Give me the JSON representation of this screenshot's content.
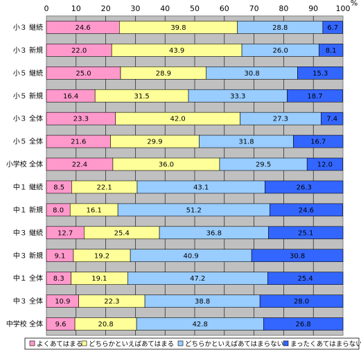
{
  "chart_data": {
    "type": "bar",
    "orientation": "horizontal",
    "stacked": true,
    "unit": "%",
    "xlim": [
      0,
      100
    ],
    "x_ticks": [
      0,
      10,
      20,
      30,
      40,
      50,
      60,
      70,
      80,
      90,
      100
    ],
    "grid": true,
    "legend_position": "bottom",
    "categories": [
      "小３ 継続",
      "小３ 新規",
      "小５ 継続",
      "小５ 新規",
      "小３ 全体",
      "小５ 全体",
      "小学校 全体",
      "中１ 継続",
      "中１ 新規",
      "中３ 継続",
      "中３ 新規",
      "中１ 全体",
      "中３ 全体",
      "中学校 全体"
    ],
    "series": [
      {
        "name": "よくあてはまる",
        "color": "#ff99cc",
        "values": [
          24.6,
          22.0,
          25.0,
          16.4,
          23.3,
          21.6,
          22.4,
          8.5,
          8.0,
          12.7,
          9.1,
          8.3,
          10.9,
          9.6
        ]
      },
      {
        "name": "どちらかといえばあてはまる",
        "color": "#ffff99",
        "values": [
          39.8,
          43.9,
          28.9,
          31.5,
          42.0,
          29.9,
          36.0,
          22.1,
          16.1,
          25.4,
          19.2,
          19.1,
          22.3,
          20.8
        ]
      },
      {
        "name": "どちらかといえばあてはまらない",
        "color": "#99ccff",
        "values": [
          28.8,
          26.0,
          30.8,
          33.3,
          27.3,
          31.8,
          29.5,
          43.1,
          51.2,
          36.8,
          40.9,
          47.2,
          38.8,
          42.8
        ]
      },
      {
        "name": "まったくあてはまらない",
        "color": "#3366ff",
        "values": [
          6.7,
          8.1,
          15.3,
          18.7,
          7.4,
          16.7,
          12.0,
          26.3,
          24.6,
          25.1,
          30.8,
          25.4,
          28.0,
          26.8
        ]
      }
    ]
  }
}
